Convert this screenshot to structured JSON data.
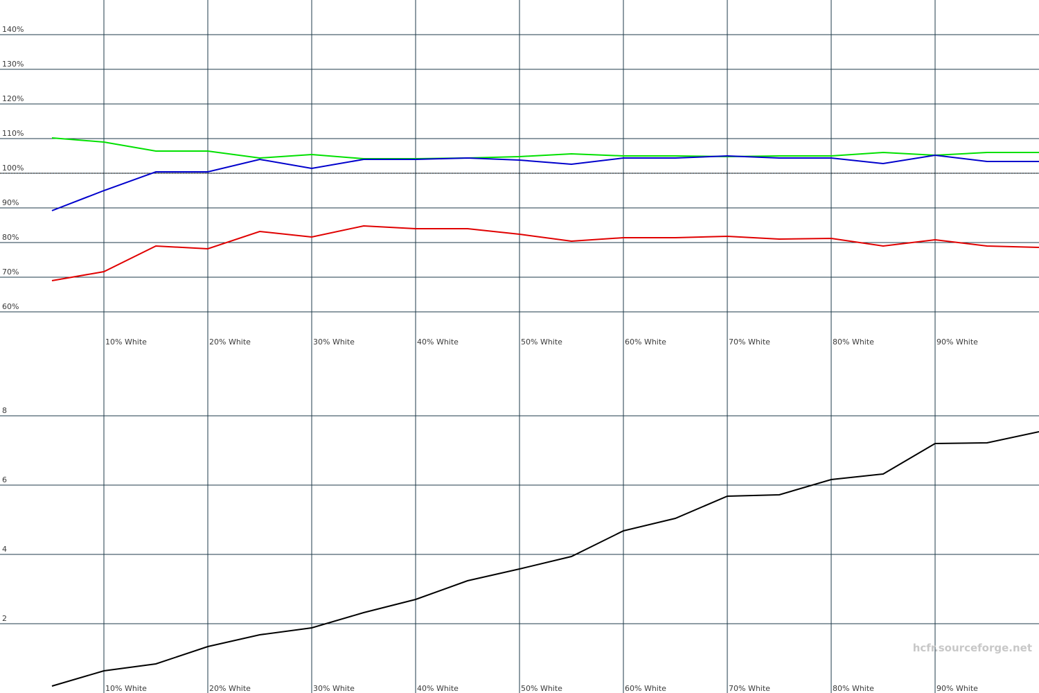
{
  "chart_data": [
    {
      "type": "line",
      "x": [
        5,
        10,
        15,
        20,
        25,
        30,
        35,
        40,
        45,
        50,
        55,
        60,
        65,
        70,
        75,
        80,
        85,
        90,
        95,
        100
      ],
      "xlim": [
        0,
        100
      ],
      "xticks": [
        {
          "value": 10,
          "label": "10% White"
        },
        {
          "value": 20,
          "label": "20% White"
        },
        {
          "value": 30,
          "label": "30% White"
        },
        {
          "value": 40,
          "label": "40% White"
        },
        {
          "value": 50,
          "label": "50% White"
        },
        {
          "value": 60,
          "label": "60% White"
        },
        {
          "value": 70,
          "label": "70% White"
        },
        {
          "value": 80,
          "label": "80% White"
        },
        {
          "value": 90,
          "label": "90% White"
        }
      ],
      "ylim": [
        50,
        150
      ],
      "yticks": [
        {
          "value": 60,
          "label": "60%"
        },
        {
          "value": 70,
          "label": "70%"
        },
        {
          "value": 80,
          "label": "80%"
        },
        {
          "value": 90,
          "label": "90%"
        },
        {
          "value": 100,
          "label": "100%"
        },
        {
          "value": 110,
          "label": "110%"
        },
        {
          "value": 120,
          "label": "120%"
        },
        {
          "value": 130,
          "label": "130%"
        },
        {
          "value": 140,
          "label": "140%"
        }
      ],
      "reference": 100,
      "grid": true,
      "series": [
        {
          "color": "#00e000",
          "values": [
            110.2,
            109,
            106.4,
            106.4,
            104.4,
            105.4,
            104.2,
            104.2,
            104.4,
            104.8,
            105.6,
            105,
            105,
            104.8,
            105,
            105,
            106,
            105.2,
            106,
            106
          ]
        },
        {
          "color": "#0000cc",
          "values": [
            89.2,
            95,
            100.4,
            100.4,
            104,
            101.4,
            104,
            104,
            104.4,
            103.8,
            102.6,
            104.4,
            104.4,
            105,
            104.4,
            104.4,
            102.8,
            105.2,
            103.4,
            103.4
          ]
        },
        {
          "color": "#e00000",
          "values": [
            69,
            71.6,
            79,
            78.2,
            83.2,
            81.6,
            84.8,
            84,
            84,
            82.4,
            80.4,
            81.4,
            81.4,
            81.8,
            81,
            81.2,
            79,
            80.8,
            79,
            78.6
          ]
        }
      ]
    },
    {
      "type": "line",
      "x": [
        5,
        10,
        15,
        20,
        25,
        30,
        35,
        40,
        45,
        50,
        55,
        60,
        65,
        70,
        75,
        80,
        85,
        90,
        95,
        100
      ],
      "xlim": [
        0,
        100
      ],
      "xticks": [
        {
          "value": 10,
          "label": "10% White"
        },
        {
          "value": 20,
          "label": "20% White"
        },
        {
          "value": 30,
          "label": "30% White"
        },
        {
          "value": 40,
          "label": "40% White"
        },
        {
          "value": 50,
          "label": "50% White"
        },
        {
          "value": 60,
          "label": "60% White"
        },
        {
          "value": 70,
          "label": "70% White"
        },
        {
          "value": 80,
          "label": "80% White"
        },
        {
          "value": 90,
          "label": "90% White"
        }
      ],
      "ylim": [
        0,
        10
      ],
      "yticks": [
        2,
        4,
        6,
        8
      ],
      "grid": true,
      "series": [
        {
          "color": "#000000",
          "values": [
            0.2,
            0.64,
            0.84,
            1.34,
            1.68,
            1.88,
            2.32,
            2.7,
            3.24,
            3.58,
            3.94,
            4.68,
            5.04,
            5.68,
            5.72,
            6.16,
            6.32,
            7.2,
            7.22,
            7.54
          ]
        }
      ]
    }
  ],
  "watermark": "hcfr.sourceforge.net"
}
